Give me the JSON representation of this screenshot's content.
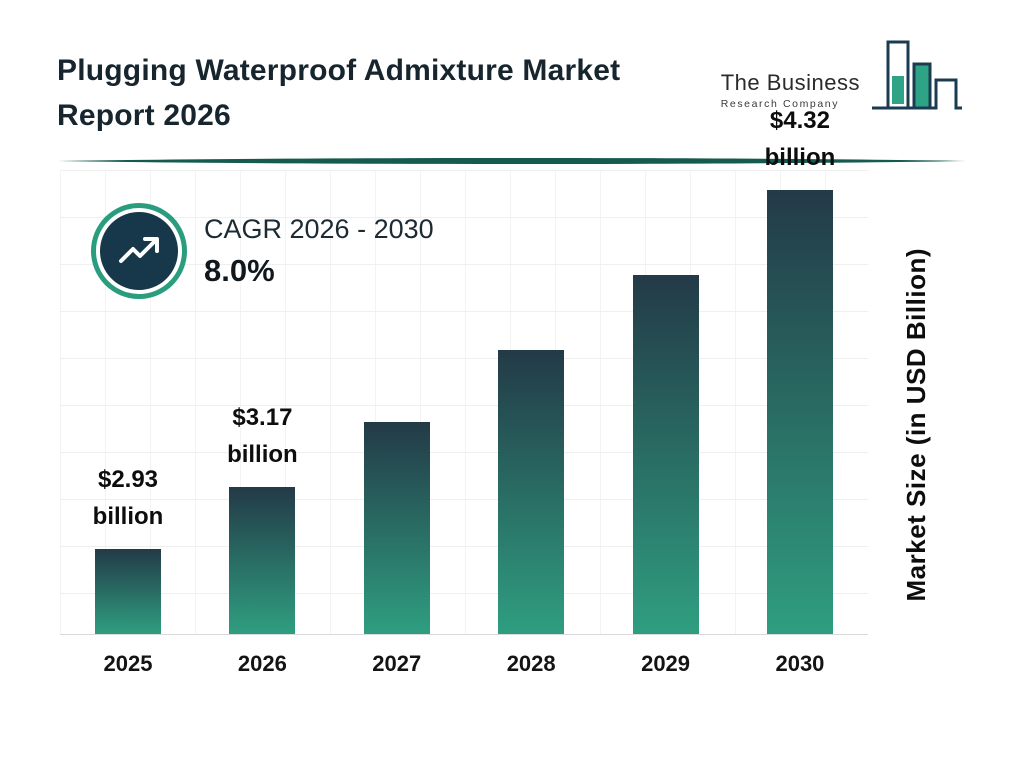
{
  "header": {
    "title_line1": "Plugging Waterproof Admixture Market",
    "title_line2": "Report 2026",
    "logo": {
      "line1": "The Business",
      "line2": "Research Company"
    }
  },
  "cagr": {
    "label": "CAGR 2026 - 2030",
    "value": "8.0%"
  },
  "chart_data": {
    "type": "bar",
    "title": "Plugging Waterproof Admixture Market Report 2026",
    "categories": [
      "2025",
      "2026",
      "2027",
      "2028",
      "2029",
      "2030"
    ],
    "values": [
      2.93,
      3.17,
      3.42,
      3.7,
      3.99,
      4.32
    ],
    "labeled_points": [
      {
        "category": "2025",
        "label_line1": "$2.93",
        "label_line2": "billion"
      },
      {
        "category": "2026",
        "label_line1": "$3.17",
        "label_line2": "billion"
      },
      {
        "category": "2030",
        "label_line1": "$4.32",
        "label_line2": "billion"
      }
    ],
    "xlabel": "",
    "ylabel": "Market Size (in USD Billion)",
    "ylim": [
      2.6,
      4.4
    ],
    "grid": true,
    "legend": "none",
    "bar_gradient": [
      "#233a47",
      "#2f9e80"
    ],
    "accent_teal": "#2a9d7f",
    "accent_navy": "#17374a",
    "divider_color": "#155a4e"
  }
}
